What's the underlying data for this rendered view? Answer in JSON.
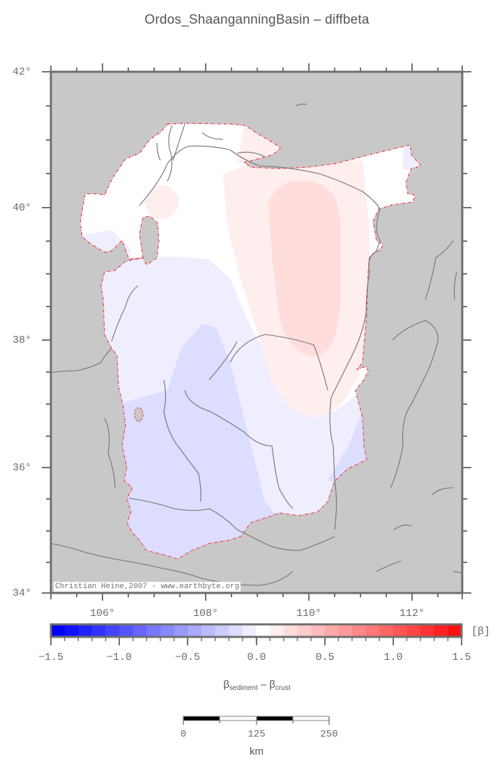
{
  "title": "Ordos_ShaanganningBasin – diffbeta",
  "map": {
    "lat_labels": [
      "42°",
      "40°",
      "38°",
      "36°",
      "34°"
    ],
    "lon_labels": [
      "106°",
      "108°",
      "110°",
      "112°"
    ],
    "extent": {
      "lon_min": 105,
      "lon_max": 113,
      "lat_min": 34,
      "lat_max": 42
    },
    "land_color": "#c8c8c8",
    "frame_color": "#6e6e6e",
    "boundary_color": "#e8343c",
    "river_color": "#707070",
    "credit": "Christian Heine,2007 - www.earthbyte.org"
  },
  "colorbar": {
    "tick_labels": [
      "−1.5",
      "−1.0",
      "−0.5",
      "0.0",
      "0.5",
      "1.0",
      "1.5"
    ],
    "unit": "[β]",
    "title_main": "β",
    "title_sub1": "sediment",
    "title_mid": " – β",
    "title_sub2": "crust",
    "colors": [
      "#0000ff",
      "#1111ff",
      "#2222ff",
      "#3333ff",
      "#4444ff",
      "#5555ff",
      "#6666ff",
      "#7777ff",
      "#8888ff",
      "#9999ff",
      "#aaaaff",
      "#bbbbff",
      "#ccccff",
      "#ddddff",
      "#eeeeff",
      "#ffffff",
      "#ffeeee",
      "#ffdddd",
      "#ffcccc",
      "#ffbbbb",
      "#ffaaaa",
      "#ff9999",
      "#ff8888",
      "#ff7777",
      "#ff6666",
      "#ff5555",
      "#ff4444",
      "#ff3333",
      "#ff2222",
      "#ff1111"
    ]
  },
  "scalebar": {
    "labels": [
      "0",
      "125",
      "250"
    ],
    "unit": "km"
  }
}
